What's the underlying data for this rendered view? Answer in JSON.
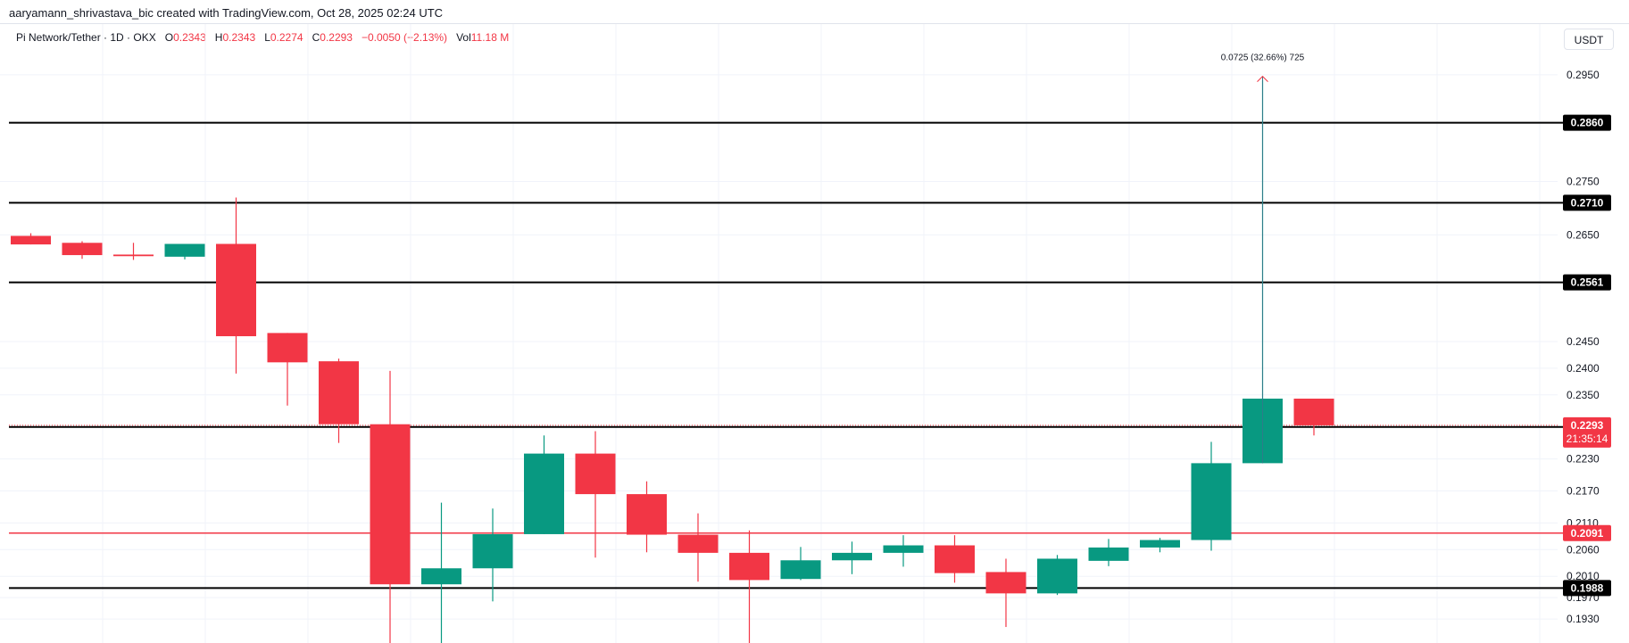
{
  "header": {
    "attribution": "aaryamann_shrivastava_bic created with TradingView.com, Oct 28, 2025 02:24 UTC"
  },
  "legend": {
    "symbol": "Pi Network/Tether · 1D · OKX",
    "open_label": "O",
    "open": "0.2343",
    "high_label": "H",
    "high": "0.2343",
    "low_label": "L",
    "low": "0.2274",
    "close_label": "C",
    "close": "0.2293",
    "change": "−0.0050 (−2.13%)",
    "vol_label": "Vol",
    "vol": "11.18 M"
  },
  "currency_button": "USDT",
  "colors": {
    "up": "#089981",
    "down": "#f23645",
    "level_line": "#000000",
    "red_level": "#f23645"
  },
  "chart_data": {
    "type": "candlestick",
    "title": "",
    "xlabel": "",
    "ylabel": "",
    "ylim": [
      0.1885,
      0.3045
    ],
    "y_ticks": [
      "0.2950",
      "0.2750",
      "0.2650",
      "0.2450",
      "0.2400",
      "0.2350",
      "0.2230",
      "0.2170",
      "0.2110",
      "0.2060",
      "0.2010",
      "0.1970",
      "0.1930"
    ],
    "candles": [
      {
        "o": 0.2648,
        "h": 0.2653,
        "l": 0.2632,
        "c": 0.2632
      },
      {
        "o": 0.2635,
        "h": 0.2638,
        "l": 0.2605,
        "c": 0.2612
      },
      {
        "o": 0.2613,
        "h": 0.2635,
        "l": 0.2603,
        "c": 0.261
      },
      {
        "o": 0.2609,
        "h": 0.2632,
        "l": 0.2604,
        "c": 0.2633
      },
      {
        "o": 0.2633,
        "h": 0.272,
        "l": 0.239,
        "c": 0.246
      },
      {
        "o": 0.2466,
        "h": 0.2466,
        "l": 0.233,
        "c": 0.2411
      },
      {
        "o": 0.2413,
        "h": 0.2418,
        "l": 0.226,
        "c": 0.2295
      },
      {
        "o": 0.2295,
        "h": 0.2395,
        "l": 0.186,
        "c": 0.1995
      },
      {
        "o": 0.1995,
        "h": 0.2148,
        "l": 0.188,
        "c": 0.2025
      },
      {
        "o": 0.2025,
        "h": 0.2137,
        "l": 0.1963,
        "c": 0.2089
      },
      {
        "o": 0.2089,
        "h": 0.2274,
        "l": 0.2089,
        "c": 0.224
      },
      {
        "o": 0.224,
        "h": 0.2282,
        "l": 0.2045,
        "c": 0.2164
      },
      {
        "o": 0.2164,
        "h": 0.2188,
        "l": 0.2055,
        "c": 0.2088
      },
      {
        "o": 0.2088,
        "h": 0.2128,
        "l": 0.2,
        "c": 0.2054
      },
      {
        "o": 0.2054,
        "h": 0.2096,
        "l": 0.1882,
        "c": 0.2003
      },
      {
        "o": 0.2005,
        "h": 0.2065,
        "l": 0.2003,
        "c": 0.204
      },
      {
        "o": 0.204,
        "h": 0.2075,
        "l": 0.2014,
        "c": 0.2054
      },
      {
        "o": 0.2054,
        "h": 0.2087,
        "l": 0.2028,
        "c": 0.2068
      },
      {
        "o": 0.2068,
        "h": 0.2087,
        "l": 0.1998,
        "c": 0.2016
      },
      {
        "o": 0.2018,
        "h": 0.2043,
        "l": 0.1915,
        "c": 0.1978
      },
      {
        "o": 0.1978,
        "h": 0.205,
        "l": 0.1975,
        "c": 0.2043
      },
      {
        "o": 0.2039,
        "h": 0.208,
        "l": 0.2029,
        "c": 0.2064
      },
      {
        "o": 0.2064,
        "h": 0.2082,
        "l": 0.2055,
        "c": 0.2078
      },
      {
        "o": 0.2078,
        "h": 0.2262,
        "l": 0.2058,
        "c": 0.2222
      },
      {
        "o": 0.2222,
        "h": 0.294,
        "l": 0.2222,
        "c": 0.2343
      },
      {
        "o": 0.2343,
        "h": 0.2343,
        "l": 0.2274,
        "c": 0.2293
      }
    ],
    "levels": [
      {
        "value": 0.286,
        "label": "0.2860",
        "style": "black"
      },
      {
        "value": 0.271,
        "label": "0.2710",
        "style": "black"
      },
      {
        "value": 0.2561,
        "label": "0.2561",
        "style": "black"
      },
      {
        "value": 0.229,
        "label": "0.2290",
        "style": "black"
      },
      {
        "value": 0.2091,
        "label": "0.2091",
        "style": "red"
      },
      {
        "value": 0.1988,
        "label": "0.1988",
        "style": "black"
      }
    ],
    "current_price": {
      "value": 0.2293,
      "label": "0.2293",
      "countdown": "21:35:14"
    },
    "annotation": {
      "text": "0.0725 (32.66%) 725",
      "candle_index": 24,
      "from": 0.2222,
      "to": 0.2947
    }
  }
}
